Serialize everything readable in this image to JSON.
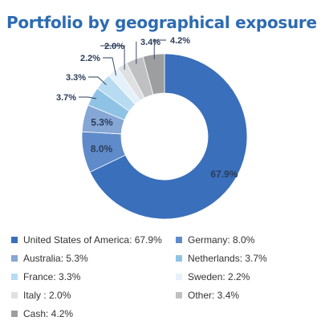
{
  "title": "Portfolio by geographical exposure",
  "chart_data": {
    "type": "pie",
    "donut": true,
    "title": "Portfolio by geographical exposure",
    "slices": [
      {
        "name": "United States of America",
        "value": 67.9,
        "label": "67.9%",
        "legend": "United States of America: 67.9%",
        "color": "#3a6fbb"
      },
      {
        "name": "Germany",
        "value": 8.0,
        "label": "8.0%",
        "legend": "Germany: 8.0%",
        "color": "#5f8bca"
      },
      {
        "name": "Australia",
        "value": 5.3,
        "label": "5.3%",
        "legend": "Australia: 5.3%",
        "color": "#86a6d5"
      },
      {
        "name": "Netherlands",
        "value": 3.7,
        "label": "3.7%",
        "legend": "Netherlands: 3.7%",
        "color": "#8fc3e6"
      },
      {
        "name": "France",
        "value": 3.3,
        "label": "3.3%",
        "legend": "France: 3.3%",
        "color": "#b7dbf1"
      },
      {
        "name": "Sweden",
        "value": 2.2,
        "label": "2.2%",
        "legend": "Sweden: 2.2%",
        "color": "#e4f1fa"
      },
      {
        "name": "Italy",
        "value": 2.0,
        "label": "2.0%",
        "legend": "Italy : 2.0%",
        "color": "#dfe0e2"
      },
      {
        "name": "Other",
        "value": 3.4,
        "label": "3.4%",
        "legend": "Other: 3.4%",
        "color": "#bfc0c2"
      },
      {
        "name": "Cash",
        "value": 4.2,
        "label": "4.2%",
        "legend": "Cash: 4.2%",
        "color": "#9d9ea0"
      }
    ],
    "legend_position": "bottom"
  }
}
